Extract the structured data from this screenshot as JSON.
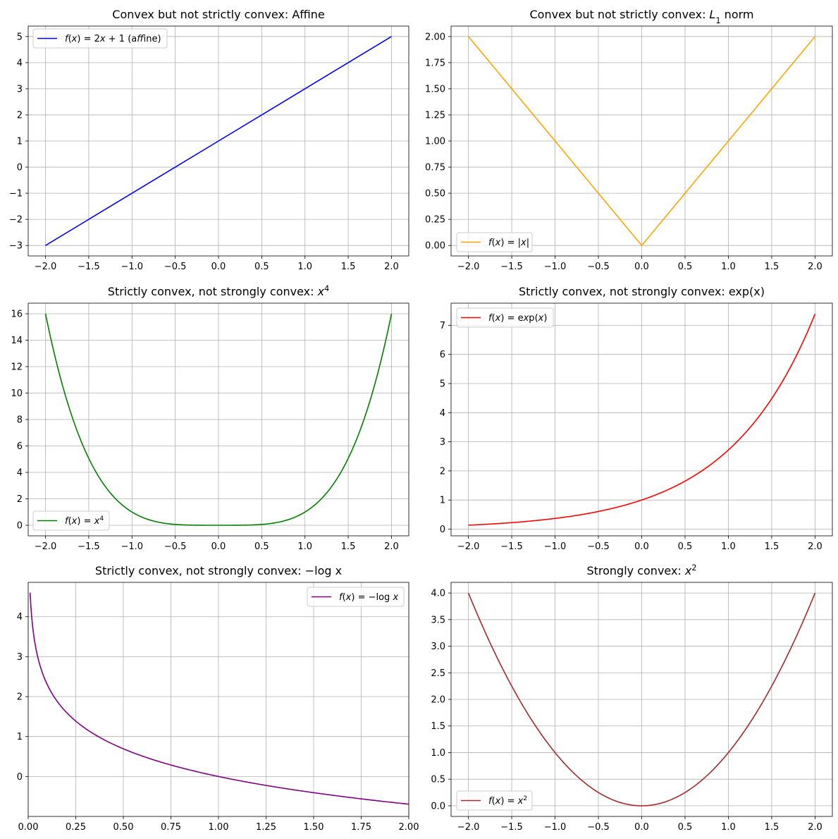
{
  "chart_data": [
    {
      "type": "line",
      "title": "Convex but not strictly convex: Affine",
      "function": "affine",
      "xlim": [
        -2.2,
        2.2
      ],
      "ylim": [
        -3.4,
        5.4
      ],
      "xticks": [
        -2.0,
        -1.5,
        -1.0,
        -0.5,
        0.0,
        0.5,
        1.0,
        1.5,
        2.0
      ],
      "xtick_labels": [
        "−2.0",
        "−1.5",
        "−1.0",
        "−0.5",
        "0.0",
        "0.5",
        "1.0",
        "1.5",
        "2.0"
      ],
      "yticks": [
        -3,
        -2,
        -1,
        0,
        1,
        2,
        3,
        4,
        5
      ],
      "ytick_labels": [
        "−3",
        "−2",
        "−1",
        "0",
        "1",
        "2",
        "3",
        "4",
        "5"
      ],
      "grid": true,
      "legend_position": "upper-left",
      "series": [
        {
          "name": "f(x) = 2x + 1 (affine)",
          "color": "#0000ff",
          "x": [
            -2.0,
            -1.0,
            0.0,
            1.0,
            2.0
          ],
          "y": [
            -3.0,
            -1.0,
            1.0,
            3.0,
            5.0
          ]
        }
      ]
    },
    {
      "type": "line",
      "title": "Convex but not strictly convex: L1 norm",
      "function": "abs",
      "xlim": [
        -2.2,
        2.2
      ],
      "ylim": [
        -0.1,
        2.1
      ],
      "xticks": [
        -2.0,
        -1.5,
        -1.0,
        -0.5,
        0.0,
        0.5,
        1.0,
        1.5,
        2.0
      ],
      "xtick_labels": [
        "−2.0",
        "−1.5",
        "−1.0",
        "−0.5",
        "0.0",
        "0.5",
        "1.0",
        "1.5",
        "2.0"
      ],
      "yticks": [
        0,
        0.25,
        0.5,
        0.75,
        1.0,
        1.25,
        1.5,
        1.75,
        2.0
      ],
      "ytick_labels": [
        "0.00",
        "0.25",
        "0.50",
        "0.75",
        "1.00",
        "1.25",
        "1.50",
        "1.75",
        "2.00"
      ],
      "grid": true,
      "legend_position": "lower-left",
      "series": [
        {
          "name": "f(x) = |x|",
          "color": "#ffa500",
          "x": [
            -2.0,
            -1.0,
            0.0,
            1.0,
            2.0
          ],
          "y": [
            2.0,
            1.0,
            0.0,
            1.0,
            2.0
          ]
        }
      ]
    },
    {
      "type": "line",
      "title": "Strictly convex, not strongly convex: x4",
      "function": "quartic",
      "xlim": [
        -2.2,
        2.2
      ],
      "ylim": [
        -0.8,
        16.8
      ],
      "xticks": [
        -2.0,
        -1.5,
        -1.0,
        -0.5,
        0.0,
        0.5,
        1.0,
        1.5,
        2.0
      ],
      "xtick_labels": [
        "−2.0",
        "−1.5",
        "−1.0",
        "−0.5",
        "0.0",
        "0.5",
        "1.0",
        "1.5",
        "2.0"
      ],
      "yticks": [
        0,
        2,
        4,
        6,
        8,
        10,
        12,
        14,
        16
      ],
      "ytick_labels": [
        "0",
        "2",
        "4",
        "6",
        "8",
        "10",
        "12",
        "14",
        "16"
      ],
      "grid": true,
      "legend_position": "lower-left",
      "series": [
        {
          "name": "f(x) = x4",
          "color": "#008000",
          "x": [
            -2.0,
            -1.5,
            -1.0,
            -0.5,
            0.0,
            0.5,
            1.0,
            1.5,
            2.0
          ],
          "y": [
            16.0,
            5.0625,
            1.0,
            0.0625,
            0.0,
            0.0625,
            1.0,
            5.0625,
            16.0
          ]
        }
      ]
    },
    {
      "type": "line",
      "title": "Strictly convex, not strongly convex: exp(x)",
      "function": "exp",
      "xlim": [
        -2.2,
        2.2
      ],
      "ylim": [
        -0.23,
        7.76
      ],
      "xticks": [
        -2.0,
        -1.5,
        -1.0,
        -0.5,
        0.0,
        0.5,
        1.0,
        1.5,
        2.0
      ],
      "xtick_labels": [
        "−2.0",
        "−1.5",
        "−1.0",
        "−0.5",
        "0.0",
        "0.5",
        "1.0",
        "1.5",
        "2.0"
      ],
      "yticks": [
        0,
        1,
        2,
        3,
        4,
        5,
        6,
        7
      ],
      "ytick_labels": [
        "0",
        "1",
        "2",
        "3",
        "4",
        "5",
        "6",
        "7"
      ],
      "grid": true,
      "legend_position": "upper-left",
      "series": [
        {
          "name": "f(x) = exp(x)",
          "color": "#ff0000",
          "x": [
            -2.0,
            -1.0,
            0.0,
            1.0,
            2.0
          ],
          "y": [
            0.135,
            0.368,
            1.0,
            2.718,
            7.389
          ]
        }
      ]
    },
    {
      "type": "line",
      "title": "Strictly convex, not strongly convex: −log x",
      "function": "neglog",
      "xlim": [
        0.0,
        2.0
      ],
      "ylim": [
        -1.0,
        4.86
      ],
      "xticks": [
        0.0,
        0.25,
        0.5,
        0.75,
        1.0,
        1.25,
        1.5,
        1.75,
        2.0
      ],
      "xtick_labels": [
        "0.00",
        "0.25",
        "0.50",
        "0.75",
        "1.00",
        "1.25",
        "1.50",
        "1.75",
        "2.00"
      ],
      "yticks": [
        0,
        1,
        2,
        3,
        4
      ],
      "ytick_labels": [
        "0",
        "1",
        "2",
        "3",
        "4"
      ],
      "grid": true,
      "legend_position": "upper-right",
      "series": [
        {
          "name": "f(x) = −log x",
          "color": "#800080",
          "x": [
            0.01,
            0.25,
            0.5,
            1.0,
            1.5,
            2.0
          ],
          "y": [
            4.605,
            1.386,
            0.693,
            0.0,
            -0.405,
            -0.693
          ]
        }
      ]
    },
    {
      "type": "line",
      "title": "Strongly convex: x2",
      "function": "square",
      "xlim": [
        -2.2,
        2.2
      ],
      "ylim": [
        -0.2,
        4.2
      ],
      "xticks": [
        -2.0,
        -1.5,
        -1.0,
        -0.5,
        0.0,
        0.5,
        1.0,
        1.5,
        2.0
      ],
      "xtick_labels": [
        "−2.0",
        "−1.5",
        "−1.0",
        "−0.5",
        "0.0",
        "0.5",
        "1.0",
        "1.5",
        "2.0"
      ],
      "yticks": [
        0,
        0.5,
        1.0,
        1.5,
        2.0,
        2.5,
        3.0,
        3.5,
        4.0
      ],
      "ytick_labels": [
        "0.0",
        "0.5",
        "1.0",
        "1.5",
        "2.0",
        "2.5",
        "3.0",
        "3.5",
        "4.0"
      ],
      "grid": true,
      "legend_position": "lower-left",
      "series": [
        {
          "name": "f(x) = x2",
          "color": "#a52a2a",
          "x": [
            -2.0,
            -1.0,
            0.0,
            1.0,
            2.0
          ],
          "y": [
            4.0,
            1.0,
            0.0,
            1.0,
            4.0
          ]
        }
      ]
    }
  ]
}
